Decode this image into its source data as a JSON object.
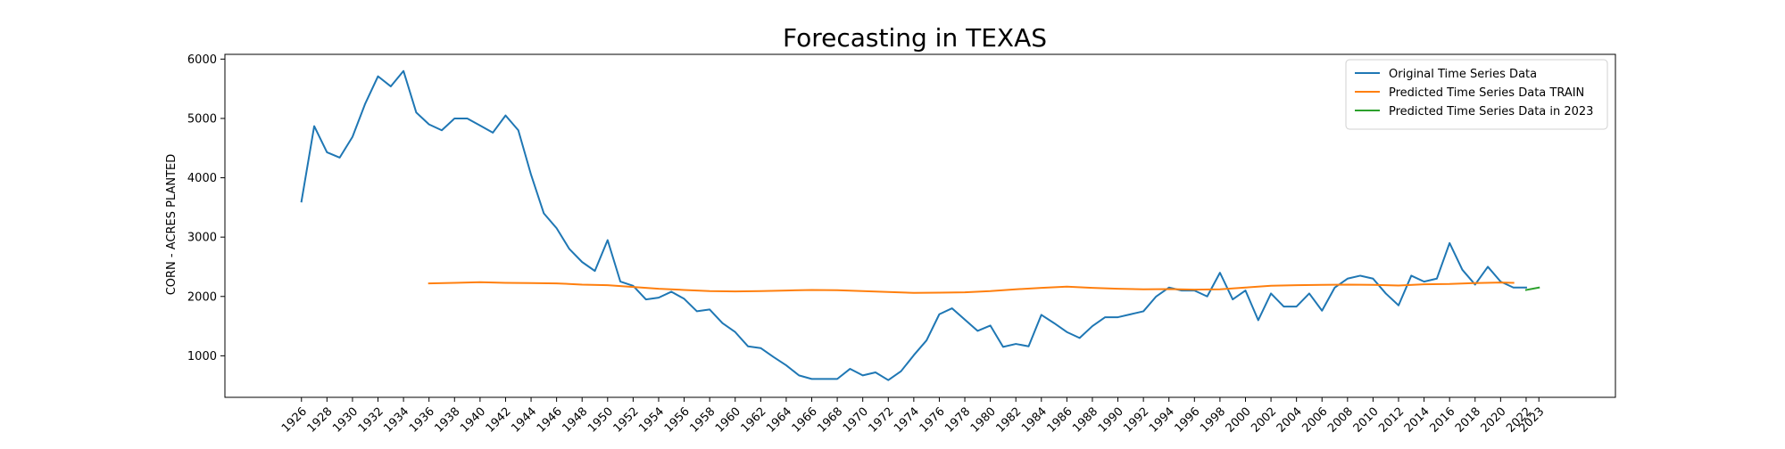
{
  "chart_data": {
    "type": "line",
    "title": "Forecasting in TEXAS",
    "xlabel": "",
    "ylabel": "CORN - ACRES PLANTED",
    "xlim": [
      1920,
      2029
    ],
    "ylim": [
      300,
      6080
    ],
    "yticks": [
      1000,
      2000,
      3000,
      4000,
      5000,
      6000
    ],
    "xticks": [
      1926,
      1928,
      1930,
      1932,
      1934,
      1936,
      1938,
      1940,
      1942,
      1944,
      1946,
      1948,
      1950,
      1952,
      1954,
      1956,
      1958,
      1960,
      1962,
      1964,
      1966,
      1968,
      1970,
      1972,
      1974,
      1976,
      1978,
      1980,
      1982,
      1984,
      1986,
      1988,
      1990,
      1992,
      1994,
      1996,
      1998,
      2000,
      2002,
      2004,
      2006,
      2008,
      2010,
      2012,
      2014,
      2016,
      2018,
      2020,
      2022,
      2023
    ],
    "grid": false,
    "legend_position": "top-right",
    "series": [
      {
        "name": "Original Time Series Data",
        "color": "#1f77b4",
        "x": [
          1926,
          1927,
          1928,
          1929,
          1930,
          1931,
          1932,
          1933,
          1934,
          1935,
          1936,
          1937,
          1938,
          1939,
          1940,
          1941,
          1942,
          1943,
          1944,
          1945,
          1946,
          1947,
          1948,
          1949,
          1950,
          1951,
          1952,
          1953,
          1954,
          1955,
          1956,
          1957,
          1958,
          1959,
          1960,
          1961,
          1962,
          1963,
          1964,
          1965,
          1966,
          1967,
          1968,
          1969,
          1970,
          1971,
          1972,
          1973,
          1974,
          1975,
          1976,
          1977,
          1978,
          1979,
          1980,
          1981,
          1982,
          1983,
          1984,
          1985,
          1986,
          1987,
          1988,
          1989,
          1990,
          1991,
          1992,
          1993,
          1994,
          1995,
          1996,
          1997,
          1998,
          1999,
          2000,
          2001,
          2002,
          2003,
          2004,
          2005,
          2006,
          2007,
          2008,
          2009,
          2010,
          2011,
          2012,
          2013,
          2014,
          2015,
          2016,
          2017,
          2018,
          2019,
          2020,
          2021,
          2022
        ],
        "y": [
          3600,
          4870,
          4430,
          4340,
          4690,
          5250,
          5710,
          5540,
          5800,
          5100,
          4900,
          4800,
          5000,
          5000,
          4880,
          4760,
          5050,
          4800,
          4050,
          3400,
          3150,
          2800,
          2580,
          2430,
          2950,
          2250,
          2180,
          1950,
          1980,
          2080,
          1960,
          1750,
          1780,
          1550,
          1400,
          1160,
          1130,
          980,
          840,
          670,
          610,
          610,
          610,
          780,
          670,
          720,
          590,
          740,
          1010,
          1260,
          1700,
          1800,
          1610,
          1420,
          1510,
          1150,
          1200,
          1160,
          1690,
          1550,
          1400,
          1300,
          1500,
          1650,
          1650,
          1700,
          1750,
          2000,
          2150,
          2100,
          2100,
          2000,
          2400,
          1950,
          2100,
          1600,
          2050,
          1830,
          1830,
          2050,
          1760,
          2150,
          2300,
          2350,
          2300,
          2050,
          1850,
          2350,
          2250,
          2300,
          2900,
          2450,
          2200,
          2500,
          2250,
          2150,
          2150
        ]
      },
      {
        "name": "Predicted Time Series Data TRAIN",
        "color": "#ff7f0e",
        "x": [
          1936,
          1938,
          1940,
          1942,
          1944,
          1946,
          1948,
          1950,
          1952,
          1954,
          1956,
          1958,
          1960,
          1962,
          1964,
          1966,
          1968,
          1970,
          1972,
          1974,
          1976,
          1978,
          1980,
          1982,
          1984,
          1986,
          1988,
          1990,
          1992,
          1994,
          1996,
          1998,
          2000,
          2002,
          2004,
          2006,
          2008,
          2010,
          2012,
          2014,
          2016,
          2018,
          2020,
          2021
        ],
        "y": [
          2220,
          2230,
          2240,
          2230,
          2225,
          2220,
          2200,
          2190,
          2160,
          2130,
          2110,
          2090,
          2085,
          2090,
          2100,
          2110,
          2105,
          2090,
          2075,
          2060,
          2065,
          2070,
          2090,
          2120,
          2145,
          2165,
          2145,
          2130,
          2120,
          2125,
          2115,
          2120,
          2150,
          2180,
          2190,
          2195,
          2200,
          2195,
          2185,
          2205,
          2210,
          2225,
          2235,
          2230
        ]
      },
      {
        "name": "Predicted Time Series Data in 2023",
        "color": "#2ca02c",
        "x": [
          2022,
          2023
        ],
        "y": [
          2110,
          2150
        ]
      }
    ]
  }
}
